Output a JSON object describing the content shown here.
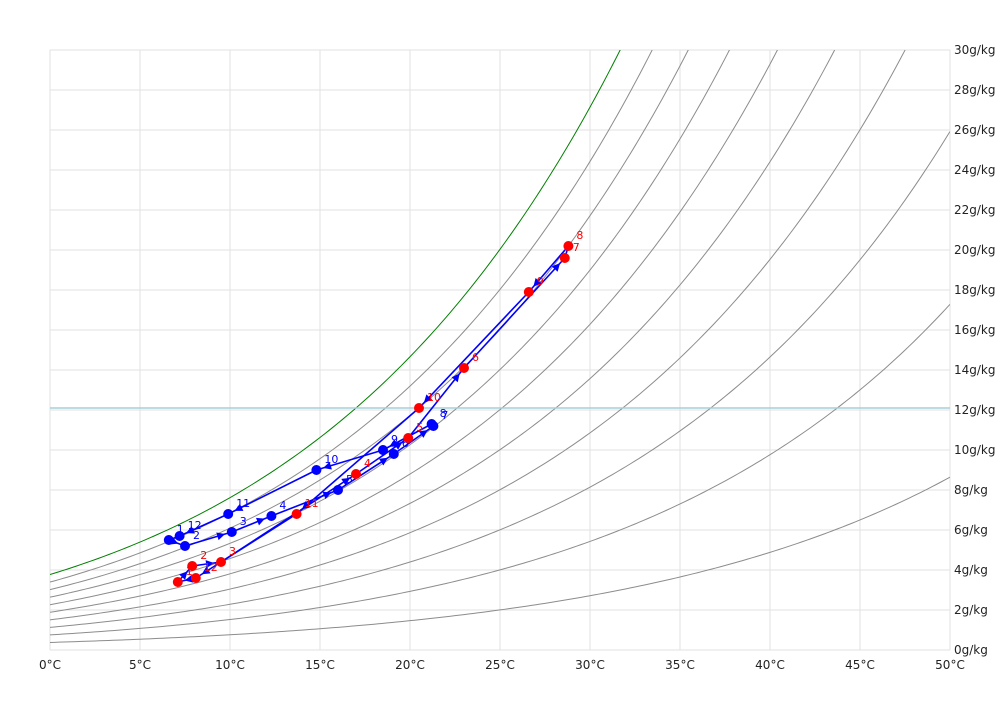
{
  "chart_data": {
    "type": "scatter",
    "title": "",
    "xlabel": "",
    "ylabel": "",
    "xlim": [
      0,
      50
    ],
    "ylim": [
      0,
      30
    ],
    "x_ticks": [
      "0°C",
      "5°C",
      "10°C",
      "15°C",
      "20°C",
      "25°C",
      "30°C",
      "35°C",
      "40°C",
      "45°C",
      "50°C"
    ],
    "y_ticks": [
      "0g/kg",
      "2g/kg",
      "4g/kg",
      "6g/kg",
      "8g/kg",
      "10g/kg",
      "12g/kg",
      "14g/kg",
      "16g/kg",
      "18g/kg",
      "20g/kg",
      "22g/kg",
      "24g/kg",
      "26g/kg",
      "28g/kg",
      "30g/kg"
    ],
    "grid": true,
    "reference_line_y": 12.1,
    "rh_curves_percent": [
      100,
      90,
      80,
      70,
      60,
      50,
      40,
      30,
      20,
      10
    ],
    "colors": {
      "saturation": "#008000",
      "rh": "#8c8c8c",
      "grid": "#e2e2e2",
      "reference": "#a6d0dc",
      "path": "#0000ff",
      "blue_marker": "#0000ff",
      "red_marker": "#ff0000"
    },
    "series": [
      {
        "color": "blue",
        "points": [
          {
            "label": "1",
            "x": 6.6,
            "y": 5.5
          },
          {
            "label": "2",
            "x": 7.5,
            "y": 5.2
          },
          {
            "label": "3",
            "x": 10.1,
            "y": 5.9
          },
          {
            "label": "4",
            "x": 12.3,
            "y": 6.7
          },
          {
            "label": "5",
            "x": 16.0,
            "y": 8.0
          },
          {
            "label": "6",
            "x": 19.1,
            "y": 9.8
          },
          {
            "label": "7",
            "x": 21.3,
            "y": 11.2
          },
          {
            "label": "8",
            "x": 21.2,
            "y": 11.3
          },
          {
            "label": "9",
            "x": 18.5,
            "y": 10.0
          },
          {
            "label": "10",
            "x": 14.8,
            "y": 9.0
          },
          {
            "label": "11",
            "x": 9.9,
            "y": 6.8
          },
          {
            "label": "12",
            "x": 7.2,
            "y": 5.7
          }
        ]
      },
      {
        "color": "red",
        "points": [
          {
            "label": "1",
            "x": 7.1,
            "y": 3.4
          },
          {
            "label": "2",
            "x": 7.9,
            "y": 4.2
          },
          {
            "label": "3",
            "x": 9.5,
            "y": 4.4
          },
          {
            "label": "4",
            "x": 17.0,
            "y": 8.8
          },
          {
            "label": "5",
            "x": 19.9,
            "y": 10.6
          },
          {
            "label": "6",
            "x": 23.0,
            "y": 14.1
          },
          {
            "label": "7",
            "x": 28.6,
            "y": 19.6
          },
          {
            "label": "8",
            "x": 28.8,
            "y": 20.2
          },
          {
            "label": "9",
            "x": 26.6,
            "y": 17.9
          },
          {
            "label": "10",
            "x": 20.5,
            "y": 12.1
          },
          {
            "label": "11",
            "x": 13.7,
            "y": 6.8
          },
          {
            "label": "12",
            "x": 8.1,
            "y": 3.6
          }
        ]
      }
    ]
  }
}
